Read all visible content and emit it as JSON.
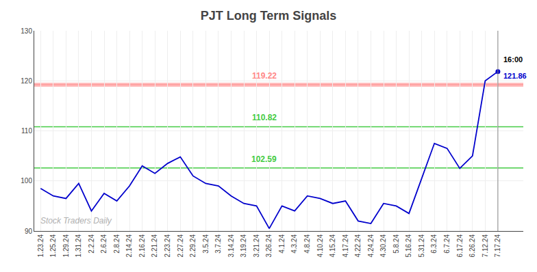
{
  "chart_data": {
    "type": "line",
    "title": "PJT Long Term Signals",
    "color": "#0000cc",
    "categories": [
      "1.23.24",
      "1.25.24",
      "1.29.24",
      "1.31.24",
      "2.2.24",
      "2.6.24",
      "2.8.24",
      "2.14.24",
      "2.16.24",
      "2.21.24",
      "2.23.24",
      "2.27.24",
      "2.29.24",
      "3.5.24",
      "3.7.24",
      "3.14.24",
      "3.19.24",
      "3.21.24",
      "3.26.24",
      "4.1.24",
      "4.3.24",
      "4.8.24",
      "4.10.24",
      "4.15.24",
      "4.17.24",
      "4.22.24",
      "4.24.24",
      "4.30.24",
      "5.8.24",
      "5.16.24",
      "5.31.24",
      "6.3.24",
      "6.7.24",
      "6.17.24",
      "6.26.24",
      "7.12.24",
      "7.17.24"
    ],
    "values": [
      98.5,
      97.0,
      96.5,
      99.5,
      94.0,
      97.5,
      96.0,
      99.0,
      103.0,
      101.5,
      103.5,
      104.8,
      101.0,
      99.5,
      99.0,
      97.0,
      95.5,
      95.0,
      90.5,
      95.0,
      94.0,
      97.0,
      96.5,
      95.5,
      96.0,
      92.0,
      91.5,
      95.5,
      95.0,
      93.5,
      100.5,
      107.5,
      106.5,
      102.5,
      105.0,
      120.0,
      121.86
    ],
    "ylim": [
      90,
      130
    ],
    "yticks": [
      90,
      100,
      110,
      120,
      130
    ],
    "grid": true,
    "hlines": [
      {
        "value": 119.22,
        "label": "119.22",
        "color": "#ff8888",
        "line_style": "band"
      },
      {
        "value": 110.82,
        "label": "110.82",
        "color": "#44cc44",
        "line_style": "solid"
      },
      {
        "value": 102.59,
        "label": "102.59",
        "color": "#44cc44",
        "line_style": "solid"
      }
    ],
    "last_point": {
      "time": "16:00",
      "value": 121.86,
      "label": "121.86"
    },
    "watermark": "Stock Traders Daily"
  }
}
